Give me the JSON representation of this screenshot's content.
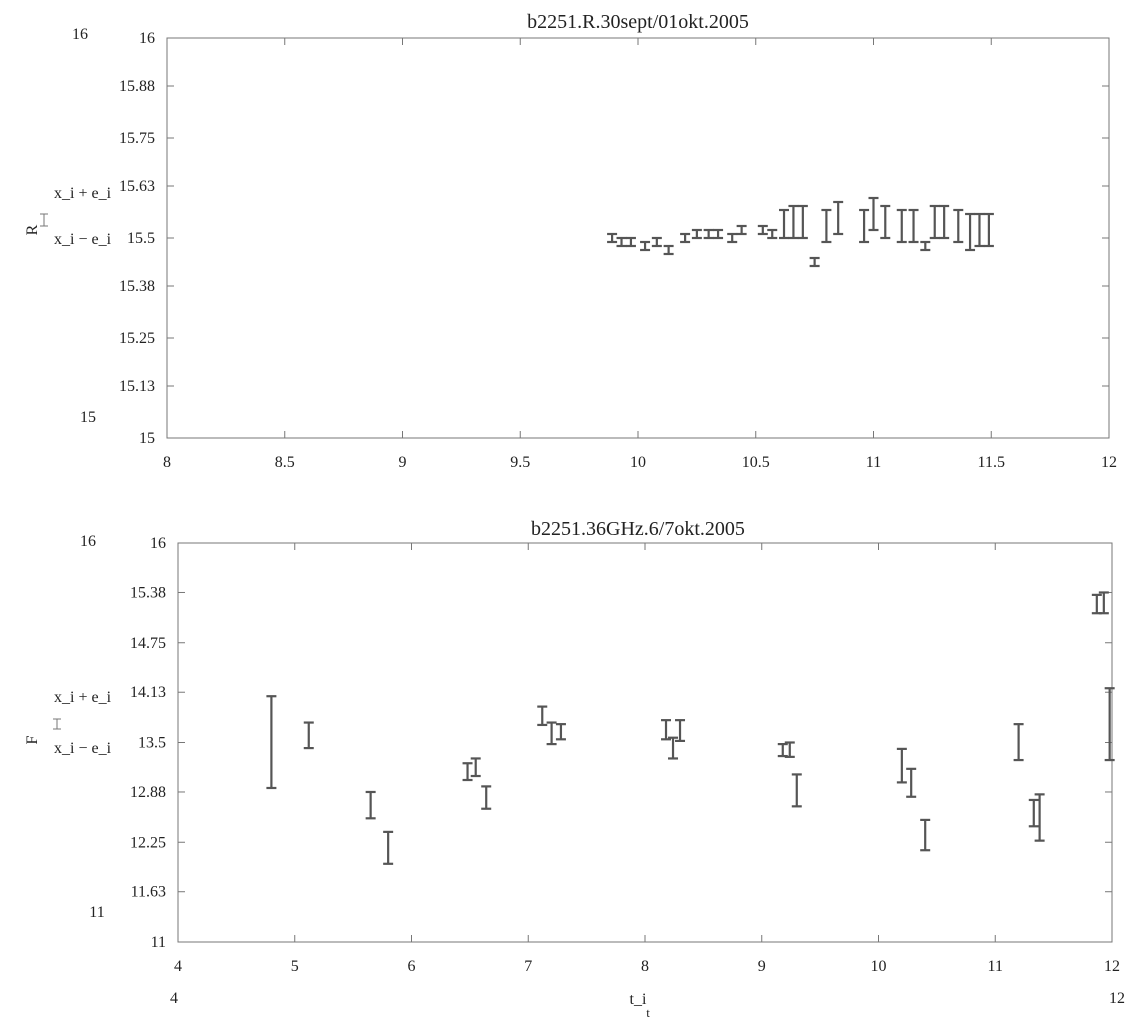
{
  "chart_data": [
    {
      "type": "error-bar",
      "title": "b2251.R.30sept/01okt.2005",
      "ylabel": "R",
      "legend": {
        "upper": "x_i + e_i",
        "lower": "x_i − e_i"
      },
      "xlim": [
        8,
        12
      ],
      "ylim": [
        15,
        16
      ],
      "xticks": [
        "8",
        "8.5",
        "9",
        "9.5",
        "10",
        "10.5",
        "11",
        "11.5",
        "12"
      ],
      "yticks": [
        "16",
        "15.88",
        "15.75",
        "15.63",
        "15.5",
        "15.38",
        "15.25",
        "15.13",
        "15"
      ],
      "ymin_outer": "15",
      "ymax_outer": "16",
      "xmin_outer": "8",
      "xmax_outer": "12",
      "bars": [
        {
          "x": 9.89,
          "lo": 15.49,
          "hi": 15.51
        },
        {
          "x": 9.93,
          "lo": 15.48,
          "hi": 15.5
        },
        {
          "x": 9.97,
          "lo": 15.48,
          "hi": 15.5
        },
        {
          "x": 10.03,
          "lo": 15.47,
          "hi": 15.49
        },
        {
          "x": 10.08,
          "lo": 15.48,
          "hi": 15.5
        },
        {
          "x": 10.13,
          "lo": 15.46,
          "hi": 15.48
        },
        {
          "x": 10.2,
          "lo": 15.49,
          "hi": 15.51
        },
        {
          "x": 10.25,
          "lo": 15.5,
          "hi": 15.52
        },
        {
          "x": 10.3,
          "lo": 15.5,
          "hi": 15.52
        },
        {
          "x": 10.34,
          "lo": 15.5,
          "hi": 15.52
        },
        {
          "x": 10.4,
          "lo": 15.49,
          "hi": 15.51
        },
        {
          "x": 10.44,
          "lo": 15.51,
          "hi": 15.53
        },
        {
          "x": 10.53,
          "lo": 15.51,
          "hi": 15.53
        },
        {
          "x": 10.57,
          "lo": 15.5,
          "hi": 15.52
        },
        {
          "x": 10.62,
          "lo": 15.5,
          "hi": 15.57
        },
        {
          "x": 10.66,
          "lo": 15.5,
          "hi": 15.58
        },
        {
          "x": 10.7,
          "lo": 15.5,
          "hi": 15.58
        },
        {
          "x": 10.75,
          "lo": 15.43,
          "hi": 15.45
        },
        {
          "x": 10.8,
          "lo": 15.49,
          "hi": 15.57
        },
        {
          "x": 10.85,
          "lo": 15.51,
          "hi": 15.59
        },
        {
          "x": 10.96,
          "lo": 15.49,
          "hi": 15.57
        },
        {
          "x": 11.0,
          "lo": 15.52,
          "hi": 15.6
        },
        {
          "x": 11.05,
          "lo": 15.5,
          "hi": 15.58
        },
        {
          "x": 11.12,
          "lo": 15.49,
          "hi": 15.57
        },
        {
          "x": 11.17,
          "lo": 15.49,
          "hi": 15.57
        },
        {
          "x": 11.22,
          "lo": 15.47,
          "hi": 15.49
        },
        {
          "x": 11.26,
          "lo": 15.5,
          "hi": 15.58
        },
        {
          "x": 11.3,
          "lo": 15.5,
          "hi": 15.58
        },
        {
          "x": 11.36,
          "lo": 15.49,
          "hi": 15.57
        },
        {
          "x": 11.41,
          "lo": 15.47,
          "hi": 15.56
        },
        {
          "x": 11.45,
          "lo": 15.48,
          "hi": 15.56
        },
        {
          "x": 11.49,
          "lo": 15.48,
          "hi": 15.56
        }
      ]
    },
    {
      "type": "error-bar",
      "title": "b2251.36GHz.6/7okt.2005",
      "ylabel": "F",
      "xlabel": "t_i",
      "xlabel_sub2": "t",
      "legend": {
        "upper": "x_i + e_i",
        "lower": "x_i − e_i"
      },
      "xlim": [
        4,
        12
      ],
      "ylim": [
        11,
        16
      ],
      "xticks": [
        "4",
        "5",
        "6",
        "7",
        "8",
        "9",
        "10",
        "11",
        "12"
      ],
      "yticks": [
        "16",
        "15.38",
        "14.75",
        "14.13",
        "13.5",
        "12.88",
        "12.25",
        "11.63",
        "11"
      ],
      "ymin_outer": "11",
      "ymax_outer": "16",
      "xmin_outer": "4",
      "xmax_outer": "12",
      "bars": [
        {
          "x": 4.8,
          "lo": 12.93,
          "hi": 14.08
        },
        {
          "x": 5.12,
          "lo": 13.43,
          "hi": 13.75
        },
        {
          "x": 5.65,
          "lo": 12.55,
          "hi": 12.88
        },
        {
          "x": 5.8,
          "lo": 11.98,
          "hi": 12.38
        },
        {
          "x": 6.48,
          "lo": 13.03,
          "hi": 13.24
        },
        {
          "x": 6.55,
          "lo": 13.08,
          "hi": 13.3
        },
        {
          "x": 6.64,
          "lo": 12.67,
          "hi": 12.95
        },
        {
          "x": 7.12,
          "lo": 13.72,
          "hi": 13.95
        },
        {
          "x": 7.2,
          "lo": 13.48,
          "hi": 13.75
        },
        {
          "x": 7.28,
          "lo": 13.54,
          "hi": 13.73
        },
        {
          "x": 8.18,
          "lo": 13.54,
          "hi": 13.78
        },
        {
          "x": 8.24,
          "lo": 13.3,
          "hi": 13.56
        },
        {
          "x": 8.3,
          "lo": 13.52,
          "hi": 13.78
        },
        {
          "x": 9.18,
          "lo": 13.33,
          "hi": 13.48
        },
        {
          "x": 9.24,
          "lo": 13.32,
          "hi": 13.5
        },
        {
          "x": 9.3,
          "lo": 12.7,
          "hi": 13.1
        },
        {
          "x": 10.2,
          "lo": 13.0,
          "hi": 13.42
        },
        {
          "x": 10.28,
          "lo": 12.82,
          "hi": 13.17
        },
        {
          "x": 10.4,
          "lo": 12.15,
          "hi": 12.53
        },
        {
          "x": 11.2,
          "lo": 13.28,
          "hi": 13.73
        },
        {
          "x": 11.33,
          "lo": 12.45,
          "hi": 12.78
        },
        {
          "x": 11.38,
          "lo": 12.27,
          "hi": 12.85
        },
        {
          "x": 11.87,
          "lo": 15.12,
          "hi": 15.35
        },
        {
          "x": 11.93,
          "lo": 15.12,
          "hi": 15.38
        },
        {
          "x": 11.98,
          "lo": 13.28,
          "hi": 14.18
        }
      ]
    }
  ]
}
